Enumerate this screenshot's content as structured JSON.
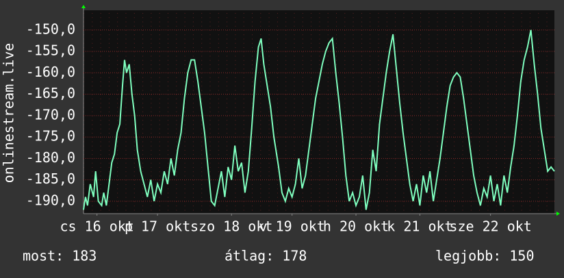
{
  "chart_data": {
    "type": "line",
    "y_label": "onlinestream.live",
    "x": [
      0,
      0.03,
      0.06,
      0.1,
      0.15,
      0.18,
      0.22,
      0.27,
      0.3,
      0.34,
      0.38,
      0.42,
      0.46,
      0.5,
      0.54,
      0.58,
      0.61,
      0.64,
      0.68,
      0.72,
      0.76,
      0.8,
      0.85,
      0.9,
      0.95,
      1.0,
      1.05,
      1.1,
      1.15,
      1.2,
      1.25,
      1.3,
      1.35,
      1.4,
      1.45,
      1.5,
      1.55,
      1.6,
      1.65,
      1.7,
      1.75,
      1.8,
      1.85,
      1.9,
      1.95,
      2.0,
      2.05,
      2.1,
      2.15,
      2.2,
      2.25,
      2.3,
      2.35,
      2.4,
      2.45,
      2.5,
      2.55,
      2.6,
      2.64,
      2.68,
      2.72,
      2.78,
      2.83,
      2.9,
      2.95,
      3.0,
      3.05,
      3.1,
      3.15,
      3.2,
      3.25,
      3.3,
      3.35,
      3.4,
      3.45,
      3.5,
      3.55,
      3.6,
      3.65,
      3.7,
      3.75,
      3.8,
      3.85,
      3.9,
      3.95,
      4.0,
      4.05,
      4.1,
      4.15,
      4.2,
      4.25,
      4.3,
      4.35,
      4.4,
      4.45,
      4.5,
      4.55,
      4.6,
      4.65,
      4.7,
      4.75,
      4.8,
      4.85,
      4.9,
      4.95,
      5.0,
      5.05,
      5.1,
      5.15,
      5.2,
      5.25,
      5.3,
      5.35,
      5.4,
      5.45,
      5.5,
      5.55,
      5.6,
      5.65,
      5.7,
      5.75,
      5.8,
      5.85,
      5.9,
      5.95,
      6.0,
      6.05,
      6.1,
      6.15,
      6.2,
      6.25,
      6.3,
      6.35,
      6.4,
      6.45,
      6.5,
      6.55,
      6.6,
      6.65,
      6.7,
      6.75,
      6.8,
      6.85,
      6.9,
      6.95,
      7.0
    ],
    "series": [
      {
        "color": "#7fffbf",
        "values": [
          -192,
          -189,
          -191,
          -186,
          -189,
          -183,
          -190,
          -191,
          -188,
          -191,
          -186,
          -181,
          -179,
          -174,
          -172,
          -163,
          -157,
          -160,
          -158,
          -165,
          -170,
          -178,
          -183,
          -186,
          -189,
          -185,
          -190,
          -186,
          -188,
          -183,
          -186,
          -180,
          -184,
          -178,
          -174,
          -166,
          -160,
          -157,
          -157,
          -162,
          -168,
          -174,
          -182,
          -190,
          -191,
          -187,
          -183,
          -189,
          -182,
          -185,
          -177,
          -183,
          -181,
          -188,
          -183,
          -173,
          -162,
          -154,
          -152,
          -158,
          -162,
          -168,
          -175,
          -182,
          -188,
          -190,
          -187,
          -189,
          -186,
          -180,
          -187,
          -184,
          -178,
          -172,
          -166,
          -162,
          -158,
          -155,
          -153,
          -152,
          -160,
          -167,
          -175,
          -184,
          -190,
          -188,
          -191,
          -189,
          -184,
          -192,
          -188,
          -178,
          -183,
          -172,
          -166,
          -160,
          -155,
          -151,
          -159,
          -167,
          -174,
          -180,
          -186,
          -190,
          -186,
          -191,
          -184,
          -188,
          -183,
          -190,
          -185,
          -180,
          -174,
          -168,
          -163,
          -161,
          -160,
          -161,
          -166,
          -172,
          -178,
          -184,
          -188,
          -191,
          -187,
          -189,
          -184,
          -190,
          -186,
          -191,
          -184,
          -188,
          -182,
          -177,
          -170,
          -162,
          -157,
          -154,
          -150,
          -158,
          -165,
          -173,
          -178,
          -183,
          -182,
          -183
        ]
      }
    ],
    "xlim": [
      0,
      7
    ],
    "xticks": [
      {
        "value": 0.2,
        "label": "cs 16 okt"
      },
      {
        "value": 1.1,
        "label": "p 17 okt"
      },
      {
        "value": 2.2,
        "label": "szo 18 okt"
      },
      {
        "value": 3.1,
        "label": "v 19 okt"
      },
      {
        "value": 4.05,
        "label": "h 20 okt"
      },
      {
        "value": 5.0,
        "label": "k 21 okt"
      },
      {
        "value": 6.05,
        "label": "sze 22 okt"
      }
    ],
    "ylim": [
      -192.9,
      -145.4
    ],
    "yticks": [
      {
        "value": -150,
        "label": "-150,0"
      },
      {
        "value": -155,
        "label": "-155,0"
      },
      {
        "value": -160,
        "label": "-160,0"
      },
      {
        "value": -165,
        "label": "-165,0"
      },
      {
        "value": -170,
        "label": "-170,0"
      },
      {
        "value": -175,
        "label": "-175,0"
      },
      {
        "value": -180,
        "label": "-180,0"
      },
      {
        "value": -185,
        "label": "-185,0"
      },
      {
        "value": -190,
        "label": "-190,0"
      }
    ],
    "grid": true
  },
  "stats": [
    "most: 183",
    "átlag: 178",
    "legjobb: 150"
  ]
}
